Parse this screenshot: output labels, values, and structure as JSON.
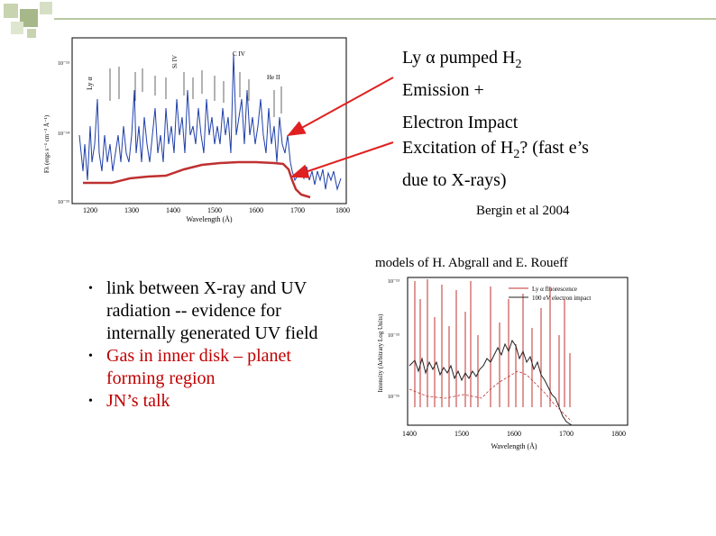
{
  "annotations": {
    "pumped_line1_prefix": "Ly ",
    "pumped_line1_alpha": "α",
    "pumped_line1_mid": "  pumped H",
    "pumped_line1_sub": "2",
    "pumped_line2": "Emission +",
    "impact_line1": "Electron Impact",
    "impact_line2_prefix": "Excitation of H",
    "impact_line2_sub": "2",
    "impact_line2_suffix": "? (fast e’s",
    "impact_line3": "due to X-rays)",
    "citation": "Bergin et al 2004",
    "models_caption": "models of H. Abgrall and E. Roueff"
  },
  "bullets": [
    {
      "text": "link between X-ray and UV radiation -- evidence for internally generated UV field",
      "color": "#000000"
    },
    {
      "text": "Gas in inner disk – planet forming region",
      "color": "#c00000"
    },
    {
      "text": "JN’s talk",
      "color": "#c00000"
    }
  ],
  "figure_top": {
    "xlabel": "Wavelength (Å)",
    "ylabel": "Fλ (ergs s⁻¹ cm⁻² Å⁻¹)",
    "xticks": [
      "1200",
      "1300",
      "1400",
      "1500",
      "1600",
      "1700",
      "1800"
    ],
    "yticks": [
      "10⁻¹³",
      "10⁻¹⁴",
      "10⁻¹⁵"
    ],
    "labels": [
      "Ly α",
      "C IV",
      "He II",
      "Si IV"
    ]
  },
  "figure_bottom": {
    "xlabel": "Wavelength (Å)",
    "ylabel": "Intensity (Arbitrary Log Units)",
    "xticks": [
      "1400",
      "1500",
      "1600",
      "1700",
      "1800"
    ],
    "yticks": [
      "10⁻¹³",
      "10⁻¹⁵",
      "10⁻¹⁶"
    ],
    "legend": [
      "Ly α fluorescence",
      "100 eV electron impact"
    ]
  },
  "colors": {
    "arrow": "#e02020",
    "spectrum_blue": "#1f3fa8",
    "model_red": "#c03030",
    "deco_square": "#b8c8a0"
  }
}
